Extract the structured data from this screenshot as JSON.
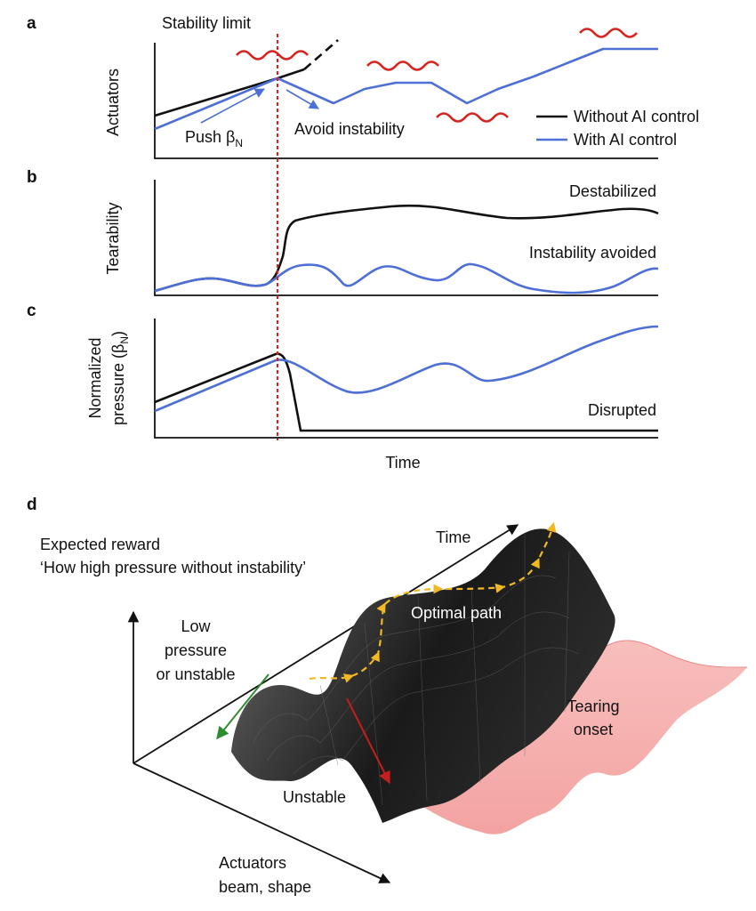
{
  "panels": {
    "a": {
      "label": "a",
      "ylabel": "Actuators",
      "stability_limit": "Stability limit",
      "push_label": "Push β",
      "push_sub": "N",
      "avoid_label": "Avoid instability",
      "legend": [
        {
          "name": "Without AI control",
          "color": "#111111"
        },
        {
          "name": "With AI control",
          "color": "#4d6fd6"
        }
      ]
    },
    "b": {
      "label": "b",
      "ylabel": "Tearability",
      "destabilized": "Destabilized",
      "avoided": "Instability avoided"
    },
    "c": {
      "label": "c",
      "ylabel_line1": "Normalized",
      "ylabel_line2": "pressure (β",
      "ylabel_sub": "N",
      "ylabel_close": ")",
      "disrupted": "Disrupted",
      "xlabel": "Time"
    },
    "d": {
      "label": "d",
      "reward_title": "Expected reward",
      "reward_quote": "‘How high pressure without instability’",
      "time": "Time",
      "optimal_path": "Optimal path",
      "low_line1": "Low",
      "low_line2": "pressure",
      "low_line3": "or unstable",
      "tearing_line1": "Tearing",
      "tearing_line2": "onset",
      "unstable": "Unstable",
      "actuators_line1": "Actuators",
      "actuators_line2": "beam, shape"
    }
  },
  "colors": {
    "without_ai": "#111111",
    "with_ai": "#4d6fd6",
    "stability_limit": "#e11d1d",
    "instability_wave": "#d8231f",
    "optimal_path": "#f2b824",
    "tearing_surface": "#f4a7a5",
    "green_arrow": "#2e8b2e"
  }
}
